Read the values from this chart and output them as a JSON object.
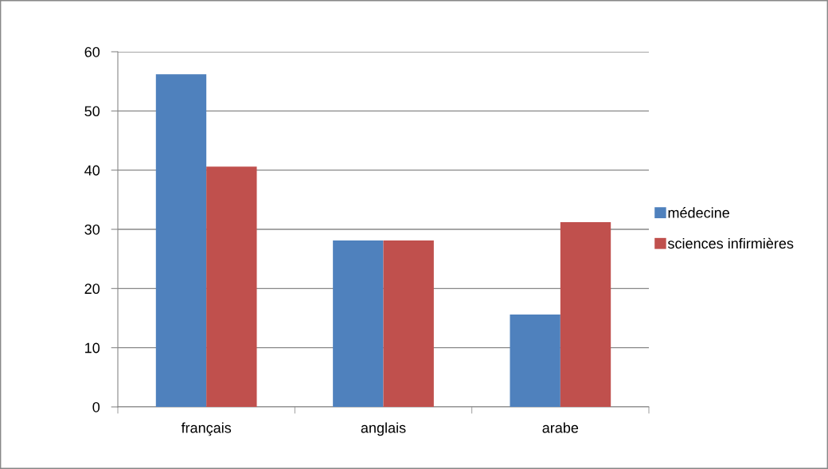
{
  "chart_data": {
    "type": "bar",
    "categories": [
      "français",
      "anglais",
      "arabe"
    ],
    "series": [
      {
        "name": "médecine",
        "color": "#4f81bd",
        "values": [
          56.2,
          28.1,
          15.6
        ]
      },
      {
        "name": "sciences infirmières",
        "color": "#c0504d",
        "values": [
          40.6,
          28.1,
          31.2
        ]
      }
    ],
    "ylim": [
      0,
      60
    ],
    "yticks": [
      0,
      10,
      20,
      30,
      40,
      50,
      60
    ],
    "grid": "y",
    "legend": "right"
  }
}
